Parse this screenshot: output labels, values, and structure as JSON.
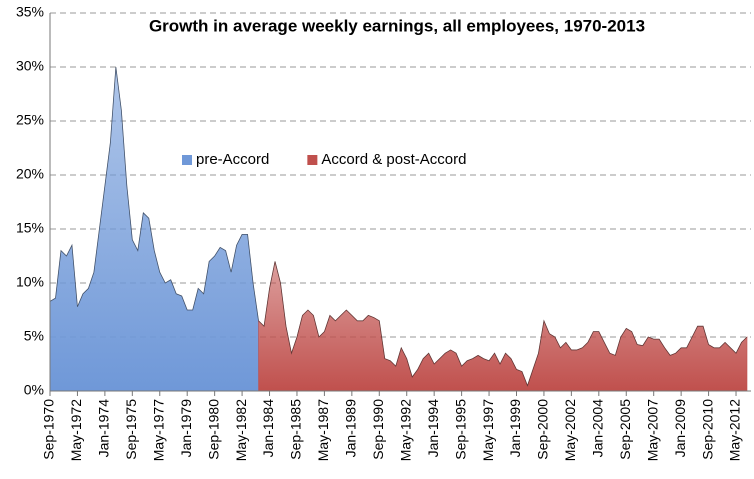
{
  "chart_data": {
    "type": "area",
    "title": "Growth in average weekly earnings, all employees, 1970-2013",
    "categories": [
      "Sep-1970",
      null,
      null,
      null,
      null,
      "May-1972",
      null,
      null,
      null,
      null,
      "Jan-1974",
      null,
      null,
      null,
      null,
      "Sep-1975",
      null,
      null,
      null,
      null,
      "May-1977",
      null,
      null,
      null,
      null,
      "Jan-1979",
      null,
      null,
      null,
      null,
      "Sep-1980",
      null,
      null,
      null,
      null,
      "May-1982",
      null,
      null,
      null,
      null,
      "Jan-1984",
      null,
      null,
      null,
      null,
      "Sep-1985",
      null,
      null,
      null,
      null,
      "May-1987",
      null,
      null,
      null,
      null,
      "Jan-1989",
      null,
      null,
      null,
      null,
      "Sep-1990",
      null,
      null,
      null,
      null,
      "May-1992",
      null,
      null,
      null,
      null,
      "Jan-1994",
      null,
      null,
      null,
      null,
      "Sep-1995",
      null,
      null,
      null,
      null,
      "May-1997",
      null,
      null,
      null,
      null,
      "Jan-1999",
      null,
      null,
      null,
      null,
      "Sep-2000",
      null,
      null,
      null,
      null,
      "May-2002",
      null,
      null,
      null,
      null,
      "Jan-2004",
      null,
      null,
      null,
      null,
      "Sep-2005",
      null,
      null,
      null,
      null,
      "May-2007",
      null,
      null,
      null,
      null,
      "Jan-2009",
      null,
      null,
      null,
      null,
      "Sep-2010",
      null,
      null,
      null,
      null,
      "May-2012",
      null,
      null
    ],
    "series": [
      {
        "name": "pre-Accord",
        "color": "#6f98d8",
        "values": [
          8.3,
          8.6,
          13,
          12.5,
          13.5,
          7.8,
          9,
          9.5,
          11,
          15,
          19,
          23,
          30,
          26,
          19,
          14,
          13,
          16.5,
          16,
          13,
          11,
          10,
          10.3,
          9,
          8.8,
          7.5,
          7.5,
          9.5,
          9,
          12,
          12.5,
          13.3,
          13,
          11,
          13.5,
          14.5,
          14.5,
          10,
          6.5,
          null,
          null,
          null,
          null,
          null,
          null,
          null,
          null,
          null,
          null,
          null,
          null,
          null,
          null,
          null,
          null,
          null,
          null,
          null,
          null,
          null,
          null,
          null,
          null,
          null,
          null,
          null,
          null,
          null,
          null,
          null,
          null,
          null,
          null,
          null,
          null,
          null,
          null,
          null,
          null,
          null,
          null,
          null,
          null,
          null,
          null,
          null,
          null,
          null,
          null,
          null,
          null,
          null,
          null,
          null,
          null,
          null,
          null,
          null,
          null,
          null,
          null,
          null,
          null,
          null,
          null,
          null,
          null,
          null,
          null,
          null,
          null,
          null,
          null,
          null,
          null,
          null,
          null,
          null,
          null,
          null,
          null,
          null,
          null,
          null,
          null,
          null,
          null,
          null
        ]
      },
      {
        "name": "Accord & post-Accord",
        "color": "#c0504d",
        "values": [
          null,
          null,
          null,
          null,
          null,
          null,
          null,
          null,
          null,
          null,
          null,
          null,
          null,
          null,
          null,
          null,
          null,
          null,
          null,
          null,
          null,
          null,
          null,
          null,
          null,
          null,
          null,
          null,
          null,
          null,
          null,
          null,
          null,
          null,
          null,
          null,
          null,
          null,
          6.5,
          6,
          9.5,
          12,
          10,
          6,
          3.5,
          5,
          7,
          7.5,
          7,
          5,
          5.5,
          7,
          6.5,
          7,
          7.5,
          7,
          6.5,
          6.5,
          7,
          6.8,
          6.5,
          3,
          2.8,
          2.3,
          4,
          3,
          1.3,
          2,
          3,
          3.5,
          2.5,
          3,
          3.5,
          3.8,
          3.5,
          2.3,
          2.8,
          3,
          3.3,
          3,
          2.8,
          3.5,
          2.5,
          3.5,
          3,
          2,
          1.8,
          0.5,
          2,
          3.5,
          6.5,
          5.3,
          5,
          4,
          4.5,
          3.8,
          3.8,
          4,
          4.5,
          5.5,
          5.5,
          4.5,
          3.5,
          3.3,
          5,
          5.8,
          5.5,
          4.3,
          4.2,
          5,
          4.8,
          4.8,
          4,
          3.3,
          3.5,
          4,
          4,
          5,
          6,
          6,
          4.3,
          4,
          4,
          4.5,
          4,
          3.5,
          4.5,
          5
        ]
      }
    ],
    "ylim": [
      0,
      35
    ],
    "yticks": [
      {
        "value": 0,
        "label": "0%"
      },
      {
        "value": 5,
        "label": "5%"
      },
      {
        "value": 10,
        "label": "10%"
      },
      {
        "value": 15,
        "label": "15%"
      },
      {
        "value": 20,
        "label": "20%"
      },
      {
        "value": 25,
        "label": "25%"
      },
      {
        "value": 30,
        "label": "30%"
      },
      {
        "value": 35,
        "label": "35%"
      }
    ],
    "grid": true,
    "legend": "center-left"
  }
}
